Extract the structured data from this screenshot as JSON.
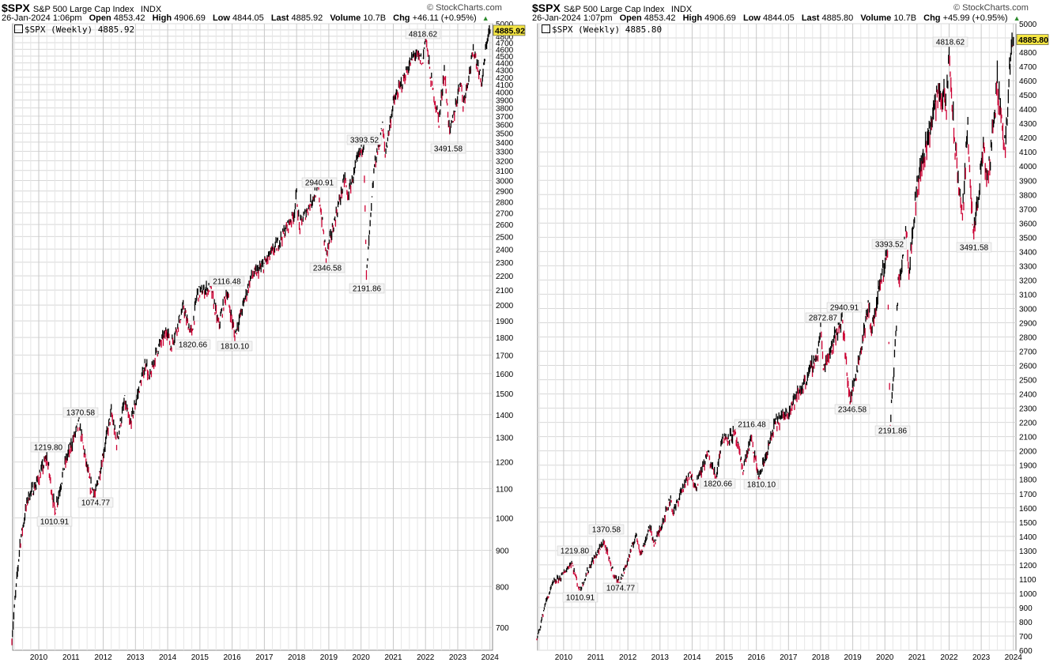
{
  "charts": [
    {
      "symbol": "$SPX",
      "description": "S&P 500 Large Cap Index",
      "exchange": "INDX",
      "brand": "© StockCharts.com",
      "date": "26-Jan-2024 1:06pm",
      "open_label": "Open",
      "open": "4853.42",
      "high_label": "High",
      "high": "4906.69",
      "low_label": "Low",
      "low": "4844.05",
      "last_label": "Last",
      "last": "4885.92",
      "volume_label": "Volume",
      "volume": "10.7B",
      "chg_label": "Chg",
      "chg": "+46.11 (+0.95%)",
      "legend": "$SPX (Weekly) 4885.92",
      "price_tag": "4885.92",
      "scale": "log"
    },
    {
      "symbol": "$SPX",
      "description": "S&P 500 Large Cap Index",
      "exchange": "INDX",
      "brand": "© StockCharts.com",
      "date": "26-Jan-2024 1:07pm",
      "open_label": "Open",
      "open": "4853.42",
      "high_label": "High",
      "high": "4906.69",
      "low_label": "Low",
      "low": "4844.05",
      "last_label": "Last",
      "last": "4885.80",
      "volume_label": "Volume",
      "volume": "10.7B",
      "chg_label": "Chg",
      "chg": "+45.99 (+0.95%)",
      "legend": "$SPX (Weekly) 4885.80",
      "price_tag": "4885.80",
      "scale": "linear"
    }
  ],
  "colors": {
    "up": "#000000",
    "down": "#cc0033",
    "grid": "#d8d8d8",
    "tag": "#f5e642",
    "label_bg": "#f4f4f4"
  },
  "chart_data": [
    {
      "type": "line",
      "title": "$SPX S&P 500 Large Cap Index",
      "scale": "log",
      "ylim": [
        650,
        5000
      ],
      "xlim": [
        "2009-03",
        "2024-01"
      ],
      "x_ticks": [
        "2010",
        "2011",
        "2012",
        "2013",
        "2014",
        "2015",
        "2016",
        "2017",
        "2018",
        "2019",
        "2020",
        "2021",
        "2022",
        "2023",
        "2024"
      ],
      "y_ticks": [
        700,
        800,
        900,
        1000,
        1100,
        1200,
        1300,
        1400,
        1500,
        1600,
        1700,
        1800,
        1900,
        2000,
        2100,
        2200,
        2300,
        2400,
        2500,
        2600,
        2700,
        2800,
        2900,
        3000,
        3100,
        3200,
        3300,
        3400,
        3500,
        3600,
        3700,
        3800,
        3900,
        4000,
        4100,
        4200,
        4300,
        4400,
        4500,
        4600,
        4700,
        4800,
        4900,
        5000
      ],
      "series": [
        {
          "x": [
            "2009-03",
            "2009-06",
            "2009-09",
            "2009-12",
            "2010-04",
            "2010-07",
            "2010-11",
            "2011-04",
            "2011-08",
            "2011-10",
            "2012-04",
            "2012-06",
            "2012-09",
            "2012-11",
            "2013-05",
            "2013-06",
            "2013-09",
            "2014-01",
            "2014-02",
            "2014-07",
            "2014-08",
            "2014-10",
            "2014-12",
            "2015-05",
            "2015-08",
            "2015-11",
            "2016-02",
            "2016-08",
            "2016-12",
            "2017-06",
            "2017-12",
            "2018-01",
            "2018-02",
            "2018-09",
            "2018-12",
            "2019-07",
            "2019-08",
            "2019-12",
            "2020-02",
            "2020-03",
            "2020-06",
            "2020-09",
            "2020-10",
            "2021-01",
            "2021-06",
            "2021-09",
            "2021-12",
            "2022-01",
            "2022-03",
            "2022-06",
            "2022-08",
            "2022-10",
            "2022-12",
            "2023-02",
            "2023-03",
            "2023-07",
            "2023-10",
            "2023-12",
            "2024-01"
          ],
          "values": [
            676,
            920,
            1070,
            1115,
            1219.8,
            1022,
            1200,
            1363,
            1120,
            1074.77,
            1410,
            1278,
            1465,
            1353,
            1670,
            1560,
            1725,
            1850,
            1740,
            1990,
            1905,
            1820.66,
            2080,
            2116.48,
            1870,
            2090,
            1810.1,
            2190,
            2260,
            2440,
            2690,
            2870,
            2580,
            2940.91,
            2346.58,
            3025,
            2840,
            3240,
            3393.52,
            2191.86,
            3150,
            3580,
            3270,
            3860,
            4280,
            4535,
            4420,
            4818.62,
            4170,
            3640,
            4300,
            3491.58,
            3780,
            4180,
            3850,
            4590,
            4117,
            4780,
            4885.92
          ]
        }
      ],
      "annotations": [
        "4818.62",
        "3491.58",
        "3393.52",
        "2940.91",
        "2346.58",
        "2191.86",
        "2116.48",
        "1820.66",
        "1810.10",
        "1370.58",
        "1219.80",
        "1010.91",
        "1074.77"
      ]
    },
    {
      "type": "line",
      "title": "$SPX S&P 500 Large Cap Index",
      "scale": "linear",
      "ylim": [
        600,
        5000
      ],
      "xlim": [
        "2009-03",
        "2024-01"
      ],
      "x_ticks": [
        "2010",
        "2011",
        "2012",
        "2013",
        "2014",
        "2015",
        "2016",
        "2017",
        "2018",
        "2019",
        "2020",
        "2021",
        "2022",
        "2023",
        "2024"
      ],
      "y_ticks": [
        600,
        700,
        800,
        900,
        1000,
        1100,
        1200,
        1300,
        1400,
        1500,
        1600,
        1700,
        1800,
        1900,
        2000,
        2100,
        2200,
        2300,
        2400,
        2500,
        2600,
        2700,
        2800,
        2900,
        3000,
        3100,
        3200,
        3300,
        3400,
        3500,
        3600,
        3700,
        3800,
        3900,
        4000,
        4100,
        4200,
        4300,
        4400,
        4500,
        4600,
        4700,
        4800,
        4900,
        5000
      ],
      "series": [
        {
          "x": [
            "2009-03",
            "2009-06",
            "2009-09",
            "2009-12",
            "2010-04",
            "2010-07",
            "2010-11",
            "2011-04",
            "2011-08",
            "2011-10",
            "2012-04",
            "2012-06",
            "2012-09",
            "2012-11",
            "2013-05",
            "2013-06",
            "2013-09",
            "2014-01",
            "2014-02",
            "2014-07",
            "2014-08",
            "2014-10",
            "2014-12",
            "2015-05",
            "2015-08",
            "2015-11",
            "2016-02",
            "2016-08",
            "2016-12",
            "2017-06",
            "2017-12",
            "2018-01",
            "2018-02",
            "2018-09",
            "2018-12",
            "2019-07",
            "2019-08",
            "2019-12",
            "2020-02",
            "2020-03",
            "2020-06",
            "2020-09",
            "2020-10",
            "2021-01",
            "2021-06",
            "2021-09",
            "2021-12",
            "2022-01",
            "2022-03",
            "2022-06",
            "2022-08",
            "2022-10",
            "2022-12",
            "2023-02",
            "2023-03",
            "2023-07",
            "2023-10",
            "2023-12",
            "2024-01"
          ],
          "values": [
            676,
            920,
            1070,
            1115,
            1219.8,
            1022,
            1200,
            1363,
            1120,
            1074.77,
            1410,
            1278,
            1465,
            1353,
            1670,
            1560,
            1725,
            1850,
            1740,
            1990,
            1905,
            1820.66,
            2080,
            2116.48,
            1870,
            2090,
            1810.1,
            2190,
            2260,
            2440,
            2690,
            2872.87,
            2580,
            2940.91,
            2346.58,
            3025,
            2840,
            3240,
            3393.52,
            2191.86,
            3150,
            3580,
            3270,
            3860,
            4280,
            4535,
            4420,
            4818.62,
            4170,
            3640,
            4300,
            3491.58,
            3780,
            4180,
            3850,
            4590,
            4117,
            4780,
            4885.8
          ]
        }
      ],
      "annotations": [
        "4818.62",
        "3491.58",
        "3393.52",
        "2940.91",
        "2872.87",
        "2346.58",
        "2191.86",
        "2116.48",
        "1820.66",
        "1810.10",
        "1370.58",
        "1219.80",
        "1010.91",
        "1074.77"
      ]
    }
  ]
}
